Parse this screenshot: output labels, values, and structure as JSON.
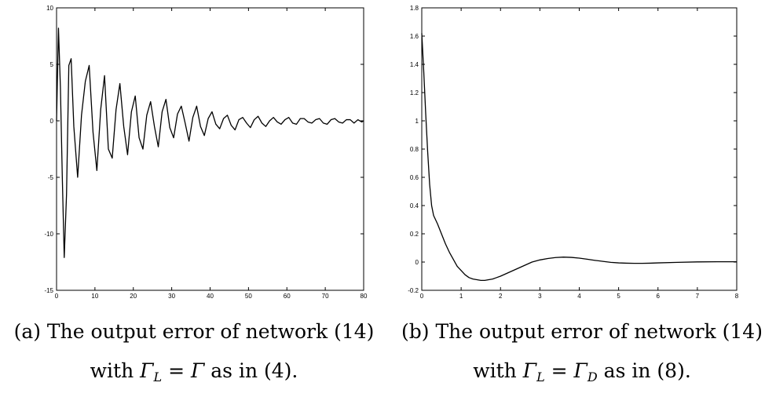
{
  "chart_data": [
    {
      "type": "line",
      "title": "",
      "xlabel": "",
      "ylabel": "",
      "xlim": [
        0,
        80
      ],
      "ylim": [
        -15,
        10
      ],
      "xticks": [
        0,
        10,
        20,
        30,
        40,
        50,
        60,
        70,
        80
      ],
      "yticks": [
        -15,
        -10,
        -5,
        0,
        5,
        10
      ],
      "grid": false,
      "series": [
        {
          "name": "",
          "x": [
            0,
            0.5,
            1.0,
            1.5,
            2.0,
            2.6,
            3.2,
            3.8,
            4.5,
            5.5,
            6.5,
            7.5,
            8.5,
            9.5,
            10.5,
            11.5,
            12.5,
            13.5,
            14.5,
            15.5,
            16.5,
            17.5,
            18.5,
            19.5,
            20.5,
            21.5,
            22.5,
            23.5,
            24.5,
            25.5,
            26.5,
            27.5,
            28.5,
            29.5,
            30.5,
            31.5,
            32.5,
            33.5,
            34.5,
            35.5,
            36.5,
            37.5,
            38.5,
            39.5,
            40.5,
            41.5,
            42.5,
            43.5,
            44.5,
            45.5,
            46.5,
            47.5,
            48.5,
            49.5,
            50.5,
            51.5,
            52.5,
            53.5,
            54.5,
            55.5,
            56.5,
            57.5,
            58.5,
            59.5,
            60.5,
            61.5,
            62.5,
            63.5,
            64.5,
            65.5,
            66.5,
            67.5,
            68.5,
            69.5,
            70.5,
            71.5,
            72.5,
            73.5,
            74.5,
            75.5,
            76.5,
            77.5,
            78.5,
            79.5,
            80
          ],
          "y": [
            0,
            8.2,
            3.0,
            -5.0,
            -12.1,
            -6.5,
            4.9,
            5.5,
            -0.5,
            -5.0,
            0.5,
            3.5,
            4.9,
            -1.0,
            -4.4,
            1.0,
            4.0,
            -2.5,
            -3.3,
            1.0,
            3.3,
            -0.5,
            -3.0,
            0.8,
            2.2,
            -1.5,
            -2.5,
            0.5,
            1.7,
            -0.5,
            -2.3,
            0.8,
            1.9,
            -0.6,
            -1.5,
            0.6,
            1.3,
            -0.2,
            -1.8,
            0.3,
            1.3,
            -0.5,
            -1.3,
            0.2,
            0.8,
            -0.3,
            -0.7,
            0.2,
            0.5,
            -0.4,
            -0.8,
            0.1,
            0.3,
            -0.2,
            -0.6,
            0.1,
            0.4,
            -0.2,
            -0.5,
            0.0,
            0.3,
            -0.1,
            -0.3,
            0.1,
            0.3,
            -0.2,
            -0.3,
            0.2,
            0.2,
            -0.1,
            -0.2,
            0.1,
            0.2,
            -0.2,
            -0.3,
            0.1,
            0.2,
            -0.1,
            -0.2,
            0.1,
            0.1,
            -0.2,
            0.1,
            -0.1,
            0.0
          ]
        }
      ]
    },
    {
      "type": "line",
      "title": "",
      "xlabel": "",
      "ylabel": "",
      "xlim": [
        0,
        8
      ],
      "ylim": [
        -0.2,
        1.8
      ],
      "xticks": [
        0,
        1,
        2,
        3,
        4,
        5,
        6,
        7,
        8
      ],
      "yticks": [
        -0.2,
        0,
        0.2,
        0.4,
        0.6,
        0.8,
        1,
        1.2,
        1.4,
        1.6,
        1.8
      ],
      "grid": false,
      "series": [
        {
          "name": "",
          "x": [
            0,
            0.05,
            0.1,
            0.15,
            0.2,
            0.25,
            0.3,
            0.4,
            0.5,
            0.6,
            0.7,
            0.8,
            0.9,
            1.0,
            1.1,
            1.2,
            1.3,
            1.4,
            1.5,
            1.6,
            1.7,
            1.8,
            1.9,
            2.0,
            2.2,
            2.4,
            2.6,
            2.8,
            3.0,
            3.2,
            3.4,
            3.6,
            3.8,
            4.0,
            4.2,
            4.4,
            4.6,
            4.8,
            5.0,
            5.2,
            5.4,
            5.6,
            5.8,
            6.0,
            6.5,
            7.0,
            7.5,
            8.0
          ],
          "y": [
            1.62,
            1.35,
            1.05,
            0.78,
            0.55,
            0.4,
            0.33,
            0.27,
            0.2,
            0.13,
            0.07,
            0.02,
            -0.03,
            -0.06,
            -0.09,
            -0.11,
            -0.12,
            -0.125,
            -0.13,
            -0.13,
            -0.125,
            -0.12,
            -0.11,
            -0.1,
            -0.075,
            -0.05,
            -0.025,
            0.0,
            0.015,
            0.025,
            0.032,
            0.035,
            0.033,
            0.028,
            0.02,
            0.012,
            0.005,
            -0.002,
            -0.006,
            -0.008,
            -0.009,
            -0.009,
            -0.008,
            -0.006,
            -0.002,
            0.001,
            0.002,
            0.002
          ]
        }
      ]
    }
  ],
  "captions": [
    {
      "line1": "(a) The output error of network (14)",
      "line2_prefix": "with ",
      "gamma": "Γ",
      "subscript": "L",
      "equals": " = ",
      "rhs_gamma": "Γ",
      "rhs_subscript": "",
      "line2_suffix": " as in (4)."
    },
    {
      "line1": "(b) The output error of network (14)",
      "line2_prefix": "with ",
      "gamma": "Γ",
      "subscript": "L",
      "equals": " = ",
      "rhs_gamma": "Γ",
      "rhs_subscript": "D",
      "line2_suffix": " as in (8)."
    }
  ]
}
